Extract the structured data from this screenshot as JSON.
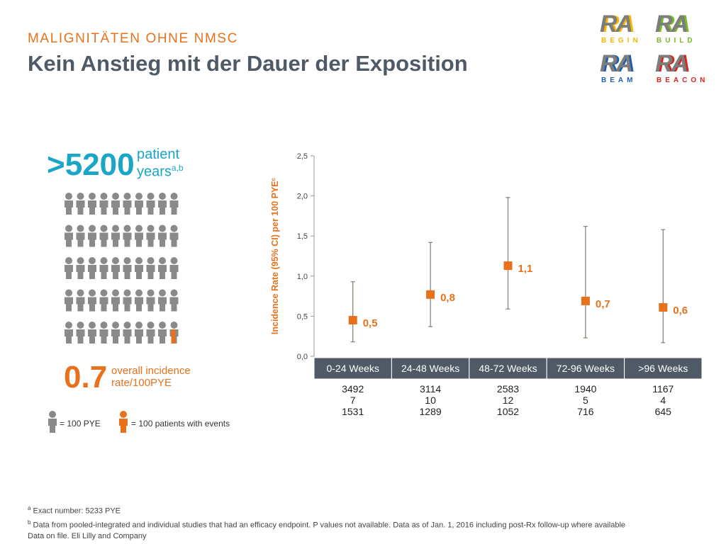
{
  "header": {
    "subtitle": "MALIGNITÄTEN OHNE NMSC",
    "title": "Kein Anstieg mit der Dauer der Exposition"
  },
  "logos": [
    {
      "ra": "RA",
      "sub": "BEGIN",
      "color": "#f5b800"
    },
    {
      "ra": "RA",
      "sub": "BUILD",
      "color": "#7ab929"
    },
    {
      "ra": "RA",
      "sub": "BEAM",
      "color": "#1f5fa8"
    },
    {
      "ra": "RA",
      "sub": "BEACON",
      "color": "#d7261e"
    }
  ],
  "summary": {
    "patient_years_value": ">5200",
    "patient_years_label_1": "patient",
    "patient_years_label_2": "years",
    "patient_years_sup": "a,b",
    "incidence_value": "0.7",
    "incidence_label_1": "overall incidence",
    "incidence_label_2": "rate/100PYE",
    "people_rows": 5,
    "people_per_row": 10,
    "event_figures": 1,
    "gray_color": "#8a8a8a",
    "orange_color": "#e8711c"
  },
  "legend": {
    "gray_label": "= 100 PYE",
    "orange_label": "= 100 patients with events"
  },
  "chart_data": {
    "type": "scatter",
    "ylabel": "Incidence Rate (95% CI) per 100 PYE",
    "ylabel_sup": "c",
    "ylim": [
      0,
      2.5
    ],
    "yticks": [
      "0,0",
      "0,5",
      "1,0",
      "1,5",
      "2,0",
      "2,5"
    ],
    "categories": [
      "0-24 Weeks",
      "24-48 Weeks",
      "48-72 Weeks",
      "72-96 Weeks",
      ">96 Weeks"
    ],
    "values": [
      0.45,
      0.77,
      1.13,
      0.69,
      0.61
    ],
    "value_labels": [
      "0,5",
      "0,8",
      "1,1",
      "0,7",
      "0,6"
    ],
    "ci_low": [
      0.18,
      0.37,
      0.59,
      0.23,
      0.17
    ],
    "ci_high": [
      0.93,
      1.42,
      1.98,
      1.62,
      1.58
    ],
    "table_rows": [
      [
        "3492",
        "3114",
        "2583",
        "1940",
        "1167"
      ],
      [
        "7",
        "10",
        "12",
        "5",
        "4"
      ],
      [
        "1531",
        "1289",
        "1052",
        "716",
        "645"
      ]
    ],
    "marker_color": "#e8711c",
    "ci_color": "#8c7b6b",
    "header_bg": "#4f5a66"
  },
  "footnotes": {
    "a_sup": "a",
    "a": " Exact number: 5233 PYE",
    "b_sup": "b",
    "b": " Data from pooled-integrated and individual studies that had an efficacy endpoint. P values not available. Data as of Jan. 1, 2016 including post-Rx follow-up where available",
    "c": "Data on file. Eli Lilly and Company"
  }
}
